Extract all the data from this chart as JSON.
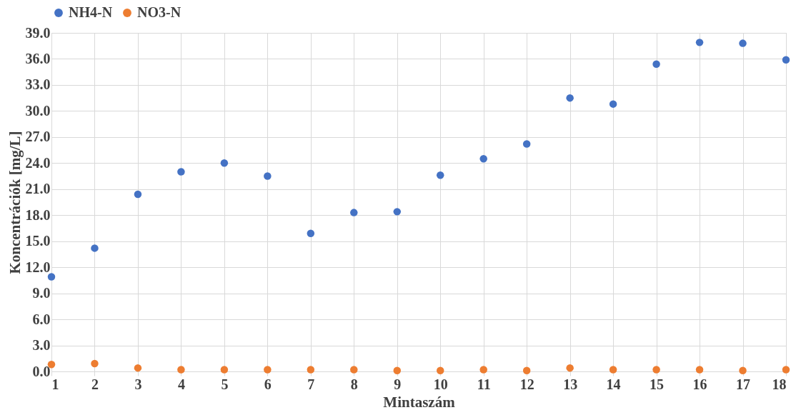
{
  "chart_data": {
    "type": "scatter",
    "xlabel": "Mintaszám",
    "ylabel": "Koncentrációk [mg/L]",
    "x": [
      1,
      2,
      3,
      4,
      5,
      6,
      7,
      8,
      9,
      10,
      11,
      12,
      13,
      14,
      15,
      16,
      17,
      18
    ],
    "series": [
      {
        "name": "NH4-N",
        "color": "#4472c4",
        "values": [
          10.9,
          14.2,
          20.4,
          23.0,
          24.0,
          22.5,
          15.9,
          18.3,
          18.4,
          22.6,
          24.5,
          26.2,
          31.5,
          30.8,
          35.4,
          37.9,
          37.8,
          35.9
        ]
      },
      {
        "name": "NO3-N",
        "color": "#ed7d31",
        "values": [
          0.8,
          0.9,
          0.4,
          0.2,
          0.2,
          0.2,
          0.2,
          0.2,
          0.1,
          0.1,
          0.2,
          0.1,
          0.4,
          0.2,
          0.2,
          0.2,
          0.1,
          0.2
        ]
      }
    ],
    "xlim": [
      1,
      18
    ],
    "xticks": [
      1,
      2,
      3,
      4,
      5,
      6,
      7,
      8,
      9,
      10,
      11,
      12,
      13,
      14,
      15,
      16,
      17,
      18
    ],
    "ylim": [
      0,
      39
    ],
    "yticks": [
      {
        "value": 0,
        "label": "0.0"
      },
      {
        "value": 3,
        "label": "3.0"
      },
      {
        "value": 6,
        "label": "6.0"
      },
      {
        "value": 9,
        "label": "9.0"
      },
      {
        "value": 12,
        "label": "12.0"
      },
      {
        "value": 15,
        "label": "15.0"
      },
      {
        "value": 18,
        "label": "18.0"
      },
      {
        "value": 21,
        "label": "21.0"
      },
      {
        "value": 24,
        "label": "24.0"
      },
      {
        "value": 27,
        "label": "27.0"
      },
      {
        "value": 30,
        "label": "30.0"
      },
      {
        "value": 33,
        "label": "33.0"
      },
      {
        "value": 36,
        "label": "36.0"
      },
      {
        "value": 39,
        "label": "39.0"
      }
    ],
    "grid": true,
    "legend": "top",
    "marker": "circle"
  }
}
